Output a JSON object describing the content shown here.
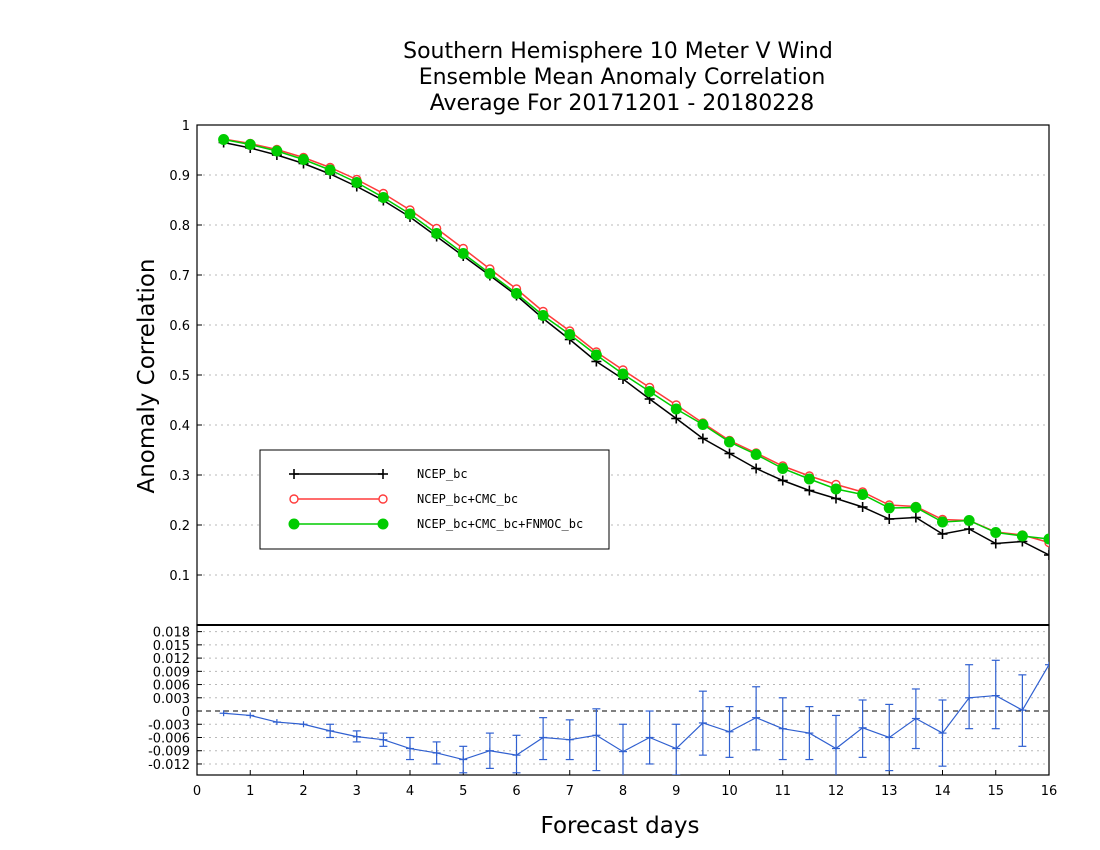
{
  "chart_data": {
    "type": "line",
    "title": [
      "Southern Hemisphere 10 Meter V Wind",
      "Ensemble Mean Anomaly Correlation",
      "Average For 20171201 - 20180228"
    ],
    "xlabel": "Forecast days",
    "ylabel": "Anomaly Correlation",
    "xlim": [
      0,
      16
    ],
    "ylim": [
      0,
      1
    ],
    "xticks": [
      "0",
      "1",
      "2",
      "3",
      "4",
      "5",
      "6",
      "7",
      "8",
      "9",
      "10",
      "11",
      "12",
      "13",
      "14",
      "15",
      "16"
    ],
    "yticks": [
      "0.1",
      "0.2",
      "0.3",
      "0.4",
      "0.5",
      "0.6",
      "0.7",
      "0.8",
      "0.9",
      "1"
    ],
    "grid": true,
    "legend_position": "left",
    "x": [
      0.5,
      1,
      1.5,
      2,
      2.5,
      3,
      3.5,
      4,
      4.5,
      5,
      5.5,
      6,
      6.5,
      7,
      7.5,
      8,
      8.5,
      9,
      9.5,
      10,
      10.5,
      11,
      11.5,
      12,
      12.5,
      13,
      13.5,
      14,
      14.5,
      15,
      15.5,
      16
    ],
    "series": [
      {
        "name": "NCEP_bc",
        "color": "#000000",
        "marker": "plus",
        "values": [
          0.965,
          0.954,
          0.94,
          0.923,
          0.902,
          0.877,
          0.849,
          0.816,
          0.777,
          0.738,
          0.699,
          0.659,
          0.613,
          0.571,
          0.527,
          0.492,
          0.452,
          0.413,
          0.373,
          0.343,
          0.313,
          0.289,
          0.269,
          0.253,
          0.236,
          0.212,
          0.215,
          0.182,
          0.192,
          0.163,
          0.167,
          0.14
        ]
      },
      {
        "name": "NCEP_bc+CMC_bc",
        "color": "#ff3b3b",
        "marker": "open-circle",
        "values": [
          0.972,
          0.963,
          0.951,
          0.935,
          0.915,
          0.891,
          0.863,
          0.83,
          0.793,
          0.753,
          0.712,
          0.672,
          0.627,
          0.588,
          0.546,
          0.51,
          0.475,
          0.44,
          0.404,
          0.369,
          0.344,
          0.318,
          0.298,
          0.281,
          0.266,
          0.24,
          0.237,
          0.211,
          0.209,
          0.186,
          0.18,
          0.165
        ]
      },
      {
        "name": "NCEP_bc+CMC_bc+FNMOC_bc",
        "color": "#00cc00",
        "marker": "filled-circle",
        "values": [
          0.971,
          0.961,
          0.948,
          0.931,
          0.91,
          0.885,
          0.855,
          0.822,
          0.783,
          0.743,
          0.703,
          0.663,
          0.619,
          0.581,
          0.54,
          0.502,
          0.467,
          0.432,
          0.401,
          0.366,
          0.341,
          0.313,
          0.292,
          0.272,
          0.261,
          0.234,
          0.235,
          0.206,
          0.209,
          0.185,
          0.178,
          0.172
        ]
      }
    ],
    "difference_panel": {
      "ylim": [
        -0.0145,
        0.0195
      ],
      "yticks": [
        "-0.012",
        "-0.009",
        "-0.006",
        "-0.003",
        "0",
        "0.003",
        "0.006",
        "0.009",
        "0.012",
        "0.015",
        "0.018"
      ],
      "color": "#3060d0",
      "values": [
        -0.0005,
        -0.001,
        -0.0025,
        -0.003,
        -0.0045,
        -0.0058,
        -0.0065,
        -0.0085,
        -0.0095,
        -0.011,
        -0.009,
        -0.01,
        -0.006,
        -0.0065,
        -0.0055,
        -0.0092,
        -0.006,
        -0.0085,
        -0.0027,
        -0.0047,
        -0.0015,
        -0.004,
        -0.005,
        -0.0085,
        -0.0038,
        -0.006,
        -0.0017,
        -0.005,
        0.003,
        0.0035,
        0.0002,
        0.0105
      ],
      "err_low": [
        -0.0005,
        -0.001,
        -0.0025,
        -0.003,
        -0.006,
        -0.007,
        -0.008,
        -0.011,
        -0.012,
        -0.014,
        -0.013,
        -0.014,
        -0.011,
        -0.011,
        -0.0135,
        -0.0155,
        -0.012,
        -0.0145,
        -0.01,
        -0.0105,
        -0.0088,
        -0.011,
        -0.011,
        -0.016,
        -0.0105,
        -0.0135,
        -0.0085,
        -0.0125,
        -0.004,
        -0.004,
        -0.008,
        0.0105
      ],
      "err_high": [
        -0.0005,
        -0.001,
        -0.0025,
        -0.003,
        -0.003,
        -0.0045,
        -0.005,
        -0.006,
        -0.007,
        -0.008,
        -0.005,
        -0.0055,
        -0.0015,
        -0.002,
        0.0005,
        -0.003,
        0.0,
        -0.003,
        0.0045,
        0.001,
        0.0055,
        0.003,
        0.001,
        -0.001,
        0.0025,
        0.0015,
        0.005,
        0.0025,
        0.0105,
        0.0115,
        0.0082,
        0.0105
      ]
    }
  }
}
